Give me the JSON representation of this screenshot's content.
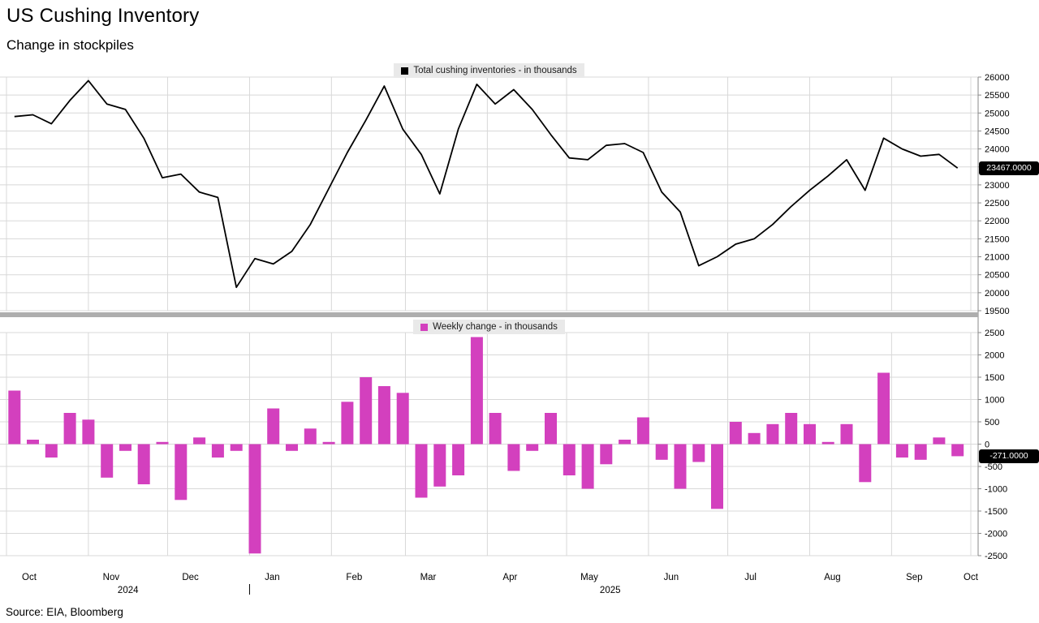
{
  "header": {
    "title": "US Cushing Inventory",
    "subtitle": "Change in stockpiles"
  },
  "source": "Source: EIA, Bloomberg",
  "colors": {
    "line": "#000000",
    "bar": "#d340be",
    "grid": "#d8d8d8",
    "axis": "#8a8a8a",
    "divider": "#aeaeae",
    "legend_bg": "#e9e9e9",
    "badge_bg": "#000000",
    "badge_text": "#ffffff",
    "text": "#000000"
  },
  "x_axis": {
    "months": [
      "Oct",
      "Nov",
      "Dec",
      "Jan",
      "Feb",
      "Mar",
      "Apr",
      "May",
      "Jun",
      "Jul",
      "Aug",
      "Sep",
      "Oct"
    ],
    "month_boundary_days": [
      0,
      31,
      61,
      92,
      123,
      151,
      182,
      212,
      243,
      273,
      304,
      335,
      365
    ],
    "years": [
      {
        "label": "2024",
        "from_boundary": 0,
        "to_boundary": 3
      },
      {
        "label": "2025",
        "from_boundary": 3,
        "to_boundary": 12
      }
    ],
    "year_divider_boundary": 3
  },
  "chart_data": [
    {
      "type": "line",
      "panel": "top",
      "legend": "Total cushing inventories - in thousands",
      "color": "#000000",
      "frequency": "weekly",
      "x_range": "Oct 2024 - Oct 2025",
      "ylim": [
        19500,
        26000
      ],
      "yticks": [
        26000,
        25500,
        25000,
        24500,
        24000,
        23500,
        23000,
        22500,
        22000,
        21500,
        21000,
        20500,
        20000,
        19500
      ],
      "last_value_label": "23467.0000",
      "last_value": 23467,
      "values": [
        24900,
        24950,
        24700,
        25350,
        25900,
        25250,
        25100,
        24300,
        23200,
        23300,
        22800,
        22650,
        20150,
        20950,
        20800,
        21150,
        21900,
        22900,
        23900,
        24800,
        25750,
        24550,
        23850,
        22750,
        24550,
        25800,
        25250,
        25650,
        25100,
        24400,
        23750,
        23700,
        24100,
        24150,
        23900,
        22800,
        22250,
        20750,
        21000,
        21350,
        21500,
        21900,
        22400,
        22850,
        23250,
        23700,
        22850,
        24300,
        24000,
        23800,
        23850,
        23467
      ]
    },
    {
      "type": "bar",
      "panel": "bottom",
      "legend": "Weekly change - in thousands",
      "color": "#d340be",
      "frequency": "weekly",
      "x_range": "Oct 2024 - Oct 2025",
      "ylim": [
        -2500,
        2500
      ],
      "yticks": [
        2500,
        2000,
        1500,
        1000,
        500,
        0,
        -500,
        -1000,
        -1500,
        -2000,
        -2500
      ],
      "last_value_label": "-271.0000",
      "last_value": -271,
      "values": [
        1200,
        100,
        -300,
        700,
        550,
        -750,
        -150,
        -900,
        50,
        -1250,
        150,
        -300,
        -150,
        -2450,
        800,
        -150,
        350,
        50,
        950,
        1500,
        1300,
        1150,
        -1200,
        -950,
        -700,
        2400,
        700,
        -600,
        -150,
        700,
        -700,
        -1000,
        -450,
        100,
        600,
        -350,
        -1000,
        -400,
        -1450,
        500,
        250,
        450,
        700,
        450,
        50,
        450,
        -850,
        1600,
        -300,
        -350,
        150,
        -271
      ]
    }
  ]
}
